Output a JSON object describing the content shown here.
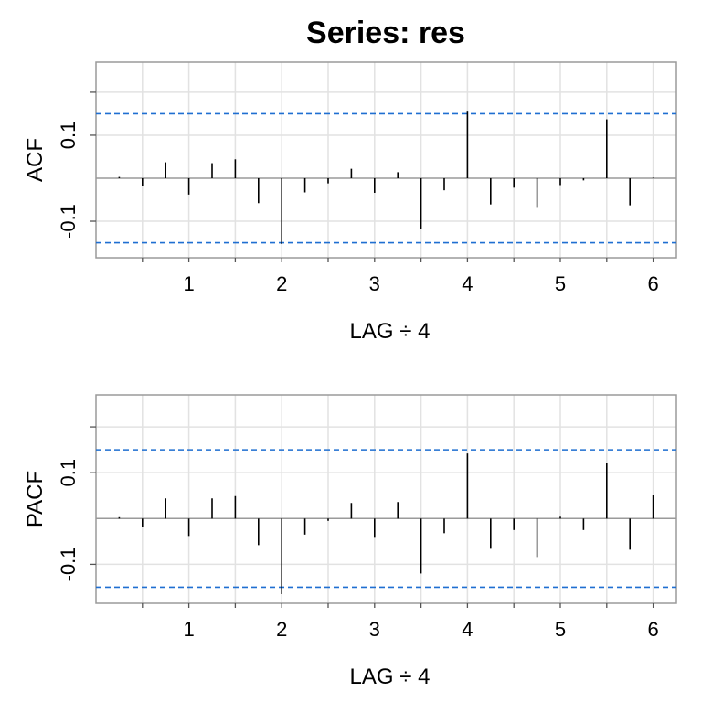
{
  "title": "Series:  res",
  "chart_data": [
    {
      "type": "bar",
      "panel": "acf",
      "ylabel": "ACF",
      "xlabel": "LAG ÷ 4",
      "ylim": [
        -0.185,
        0.27
      ],
      "xlim": [
        0.0,
        6.25
      ],
      "yticks": [
        -0.1,
        0.1
      ],
      "ytick_labels": [
        "-0.1",
        "0.1"
      ],
      "xticks": [
        1,
        2,
        3,
        4,
        5,
        6
      ],
      "xtick_labels": [
        "1",
        "2",
        "3",
        "4",
        "5",
        "6"
      ],
      "confidence_band": 0.15,
      "grid": true,
      "x": [
        0.25,
        0.5,
        0.75,
        1.0,
        1.25,
        1.5,
        1.75,
        2.0,
        2.25,
        2.5,
        2.75,
        3.0,
        3.25,
        3.5,
        3.75,
        4.0,
        4.25,
        4.5,
        4.75,
        5.0,
        5.25,
        5.5,
        5.75,
        6.0
      ],
      "values": [
        0.003,
        -0.018,
        0.037,
        -0.038,
        0.035,
        0.044,
        -0.058,
        -0.153,
        -0.033,
        -0.012,
        0.022,
        -0.034,
        0.014,
        -0.118,
        -0.028,
        0.157,
        -0.061,
        -0.022,
        -0.069,
        -0.016,
        -0.005,
        0.137,
        -0.063,
        0.001
      ]
    },
    {
      "type": "bar",
      "panel": "pacf",
      "ylabel": "PACF",
      "xlabel": "LAG ÷ 4",
      "ylim": [
        -0.185,
        0.27
      ],
      "xlim": [
        0.0,
        6.25
      ],
      "yticks": [
        -0.1,
        0.1
      ],
      "ytick_labels": [
        "-0.1",
        "0.1"
      ],
      "xticks": [
        1,
        2,
        3,
        4,
        5,
        6
      ],
      "xtick_labels": [
        "1",
        "2",
        "3",
        "4",
        "5",
        "6"
      ],
      "confidence_band": 0.15,
      "grid": true,
      "x": [
        0.25,
        0.5,
        0.75,
        1.0,
        1.25,
        1.5,
        1.75,
        2.0,
        2.25,
        2.5,
        2.75,
        3.0,
        3.25,
        3.5,
        3.75,
        4.0,
        4.25,
        4.5,
        4.75,
        5.0,
        5.25,
        5.5,
        5.75,
        6.0
      ],
      "values": [
        0.003,
        -0.018,
        0.044,
        -0.038,
        0.044,
        0.049,
        -0.058,
        -0.165,
        -0.035,
        -0.005,
        0.034,
        -0.042,
        0.036,
        -0.12,
        -0.032,
        0.142,
        -0.066,
        -0.025,
        -0.084,
        0.004,
        -0.025,
        0.121,
        -0.068,
        0.051
      ]
    }
  ]
}
